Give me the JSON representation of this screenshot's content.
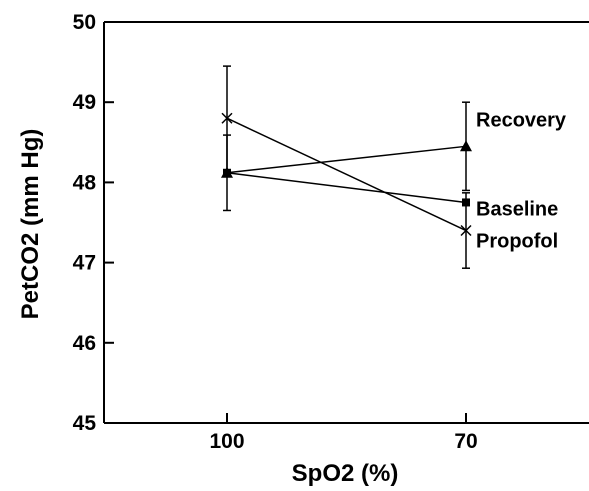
{
  "chart_data": {
    "type": "line",
    "xlabel": "SpO2 (%)",
    "ylabel": "PetCO2 (mm Hg)",
    "categories": [
      "100",
      "70"
    ],
    "ylim": [
      45,
      50
    ],
    "yticks": [
      "45",
      "46",
      "47",
      "48",
      "49",
      "50"
    ],
    "grid": false,
    "legend": "inline labels at right end of each series",
    "series": [
      {
        "name": "Recovery",
        "marker": "triangle",
        "values": [
          48.12,
          48.45
        ],
        "errors": [
          null,
          0.55
        ]
      },
      {
        "name": "Baseline",
        "marker": "square",
        "values": [
          48.12,
          47.75
        ],
        "errors": [
          0.47,
          null
        ]
      },
      {
        "name": "Propofol",
        "marker": "x",
        "values": [
          48.8,
          47.4
        ],
        "errors": [
          0.65,
          0.47
        ]
      }
    ]
  }
}
